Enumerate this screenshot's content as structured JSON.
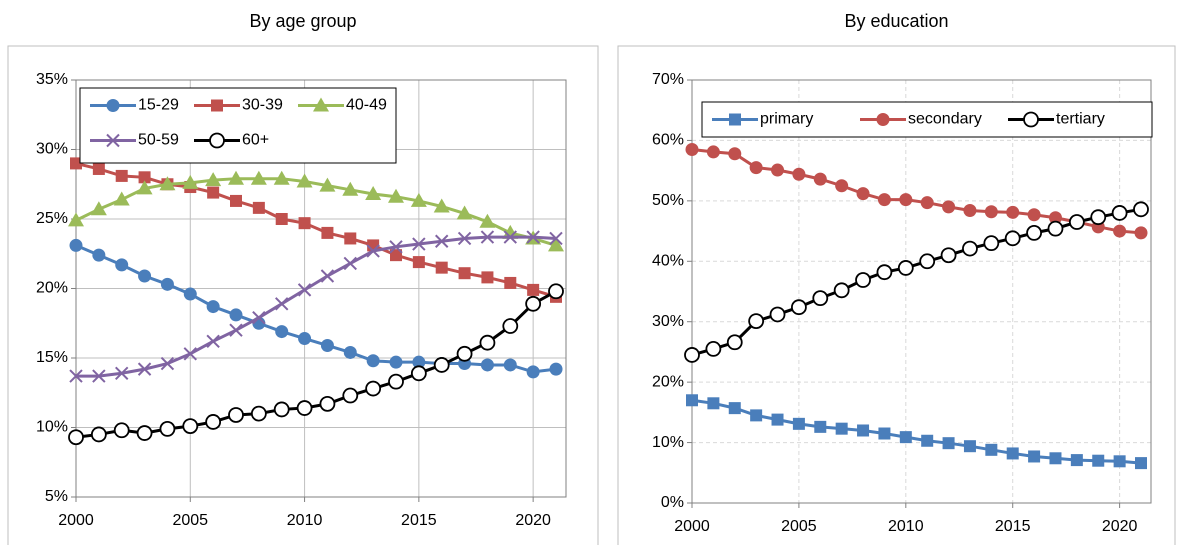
{
  "chart_data": [
    {
      "type": "line",
      "title": "By age group",
      "x": [
        2000,
        2001,
        2002,
        2003,
        2004,
        2005,
        2006,
        2007,
        2008,
        2009,
        2010,
        2011,
        2012,
        2013,
        2014,
        2015,
        2016,
        2017,
        2018,
        2019,
        2020,
        2021
      ],
      "xlim": [
        2000,
        2021
      ],
      "xticks": [
        2000,
        2005,
        2010,
        2015,
        2020
      ],
      "ylim": [
        5,
        35
      ],
      "yticks": [
        {
          "value": 5,
          "label": "5%"
        },
        {
          "value": 10,
          "label": "10%"
        },
        {
          "value": 15,
          "label": "15%"
        },
        {
          "value": 20,
          "label": "20%"
        },
        {
          "value": 25,
          "label": "25%"
        },
        {
          "value": 30,
          "label": "30%"
        },
        {
          "value": 35,
          "label": "35%"
        }
      ],
      "grid": true,
      "grid_style": "solid",
      "legend": "upper left",
      "series": [
        {
          "name": "15-29",
          "color": "#4a7ebb",
          "marker": "circle",
          "values": [
            23.1,
            22.4,
            21.7,
            20.9,
            20.3,
            19.6,
            18.7,
            18.1,
            17.5,
            16.9,
            16.4,
            15.9,
            15.4,
            14.8,
            14.7,
            14.7,
            14.6,
            14.6,
            14.5,
            14.5,
            14.0,
            14.2
          ]
        },
        {
          "name": "30-39",
          "color": "#c0504d",
          "marker": "square",
          "values": [
            29.0,
            28.6,
            28.1,
            28.0,
            27.5,
            27.3,
            26.9,
            26.3,
            25.8,
            25.0,
            24.7,
            24.0,
            23.6,
            23.1,
            22.4,
            21.9,
            21.5,
            21.1,
            20.8,
            20.4,
            19.9,
            19.4
          ]
        },
        {
          "name": "40-49",
          "color": "#9bbb59",
          "marker": "triangle",
          "values": [
            24.9,
            25.7,
            26.4,
            27.2,
            27.5,
            27.6,
            27.8,
            27.9,
            27.9,
            27.9,
            27.7,
            27.4,
            27.1,
            26.8,
            26.6,
            26.3,
            25.9,
            25.4,
            24.8,
            24.0,
            23.6,
            23.1
          ]
        },
        {
          "name": "50-59",
          "color": "#8064a2",
          "marker": "x",
          "values": [
            13.7,
            13.7,
            13.9,
            14.2,
            14.6,
            15.3,
            16.2,
            17.0,
            17.9,
            18.9,
            19.9,
            20.9,
            21.8,
            22.7,
            23.0,
            23.2,
            23.4,
            23.6,
            23.7,
            23.7,
            23.7,
            23.6
          ]
        },
        {
          "name": "60+",
          "color": "#000000",
          "marker": "open-circle",
          "values": [
            9.3,
            9.5,
            9.8,
            9.6,
            9.9,
            10.1,
            10.4,
            10.9,
            11.0,
            11.3,
            11.4,
            11.7,
            12.3,
            12.8,
            13.3,
            13.9,
            14.5,
            15.3,
            16.1,
            17.3,
            18.9,
            19.8
          ]
        }
      ]
    },
    {
      "type": "line",
      "title": "By education",
      "x": [
        2000,
        2001,
        2002,
        2003,
        2004,
        2005,
        2006,
        2007,
        2008,
        2009,
        2010,
        2011,
        2012,
        2013,
        2014,
        2015,
        2016,
        2017,
        2018,
        2019,
        2020,
        2021
      ],
      "xlim": [
        2000,
        2021
      ],
      "xticks": [
        2000,
        2005,
        2010,
        2015,
        2020
      ],
      "ylim": [
        0,
        70
      ],
      "yticks": [
        {
          "value": 0,
          "label": "0%"
        },
        {
          "value": 10,
          "label": "10%"
        },
        {
          "value": 20,
          "label": "20%"
        },
        {
          "value": 30,
          "label": "30%"
        },
        {
          "value": 40,
          "label": "40%"
        },
        {
          "value": 50,
          "label": "50%"
        },
        {
          "value": 60,
          "label": "60%"
        },
        {
          "value": 70,
          "label": "70%"
        }
      ],
      "grid": true,
      "grid_style": "dashed",
      "legend": "upper center",
      "series": [
        {
          "name": "primary",
          "color": "#4a7ebb",
          "marker": "square",
          "values": [
            17.0,
            16.5,
            15.7,
            14.5,
            13.8,
            13.1,
            12.6,
            12.3,
            12.0,
            11.5,
            10.9,
            10.3,
            9.9,
            9.4,
            8.8,
            8.2,
            7.7,
            7.4,
            7.1,
            7.0,
            6.9,
            6.6
          ]
        },
        {
          "name": "secondary",
          "color": "#c0504d",
          "marker": "circle",
          "values": [
            58.5,
            58.1,
            57.8,
            55.5,
            55.1,
            54.4,
            53.6,
            52.5,
            51.2,
            50.2,
            50.2,
            49.7,
            49.0,
            48.4,
            48.2,
            48.1,
            47.7,
            47.2,
            46.5,
            45.7,
            45.0,
            44.7
          ]
        },
        {
          "name": "tertiary",
          "color": "#000000",
          "marker": "open-circle",
          "values": [
            24.5,
            25.5,
            26.6,
            30.1,
            31.2,
            32.4,
            33.9,
            35.2,
            36.9,
            38.2,
            38.9,
            40.0,
            41.0,
            42.1,
            43.0,
            43.8,
            44.7,
            45.4,
            46.5,
            47.3,
            48.0,
            48.6
          ]
        }
      ]
    }
  ]
}
